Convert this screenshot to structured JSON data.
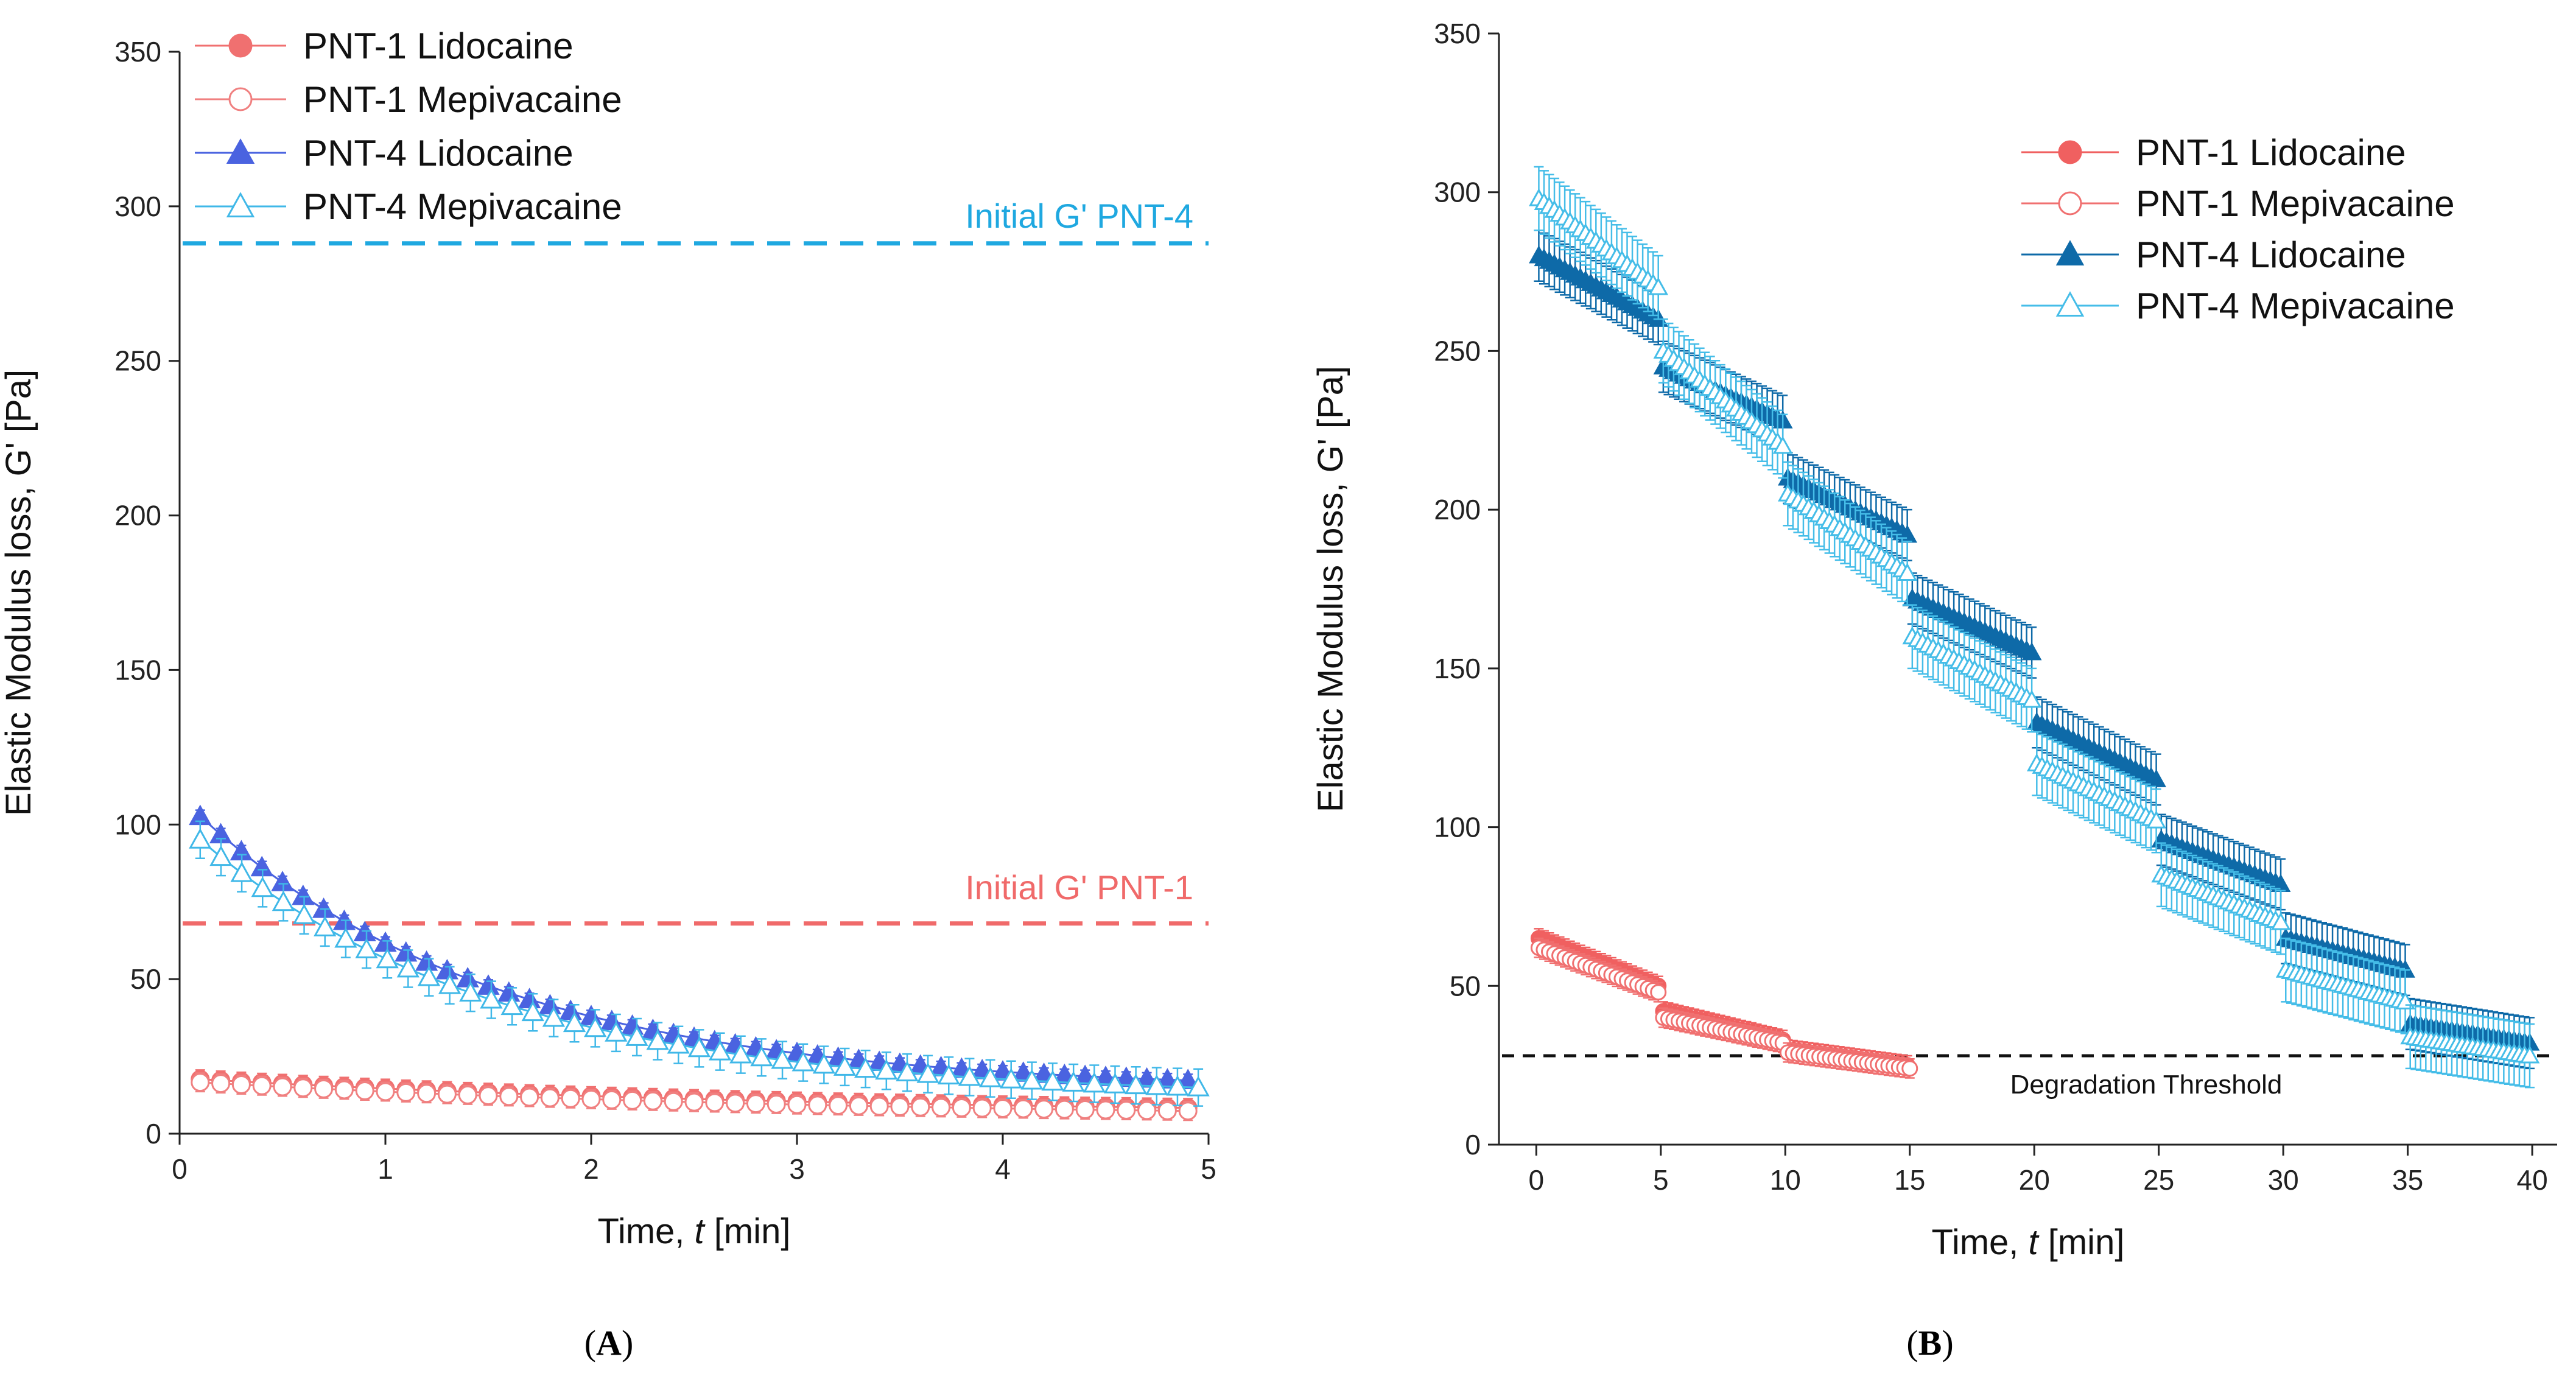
{
  "chart_data": [
    {
      "panel": "A",
      "type": "scatter",
      "xlabel_prefix": "Time, ",
      "xlabel_var": "t",
      "xlabel_suffix": " [min]",
      "ylabel": "Elastic Modulus loss, G' [Pa]",
      "xlim": [
        0,
        5
      ],
      "ylim": [
        0,
        350
      ],
      "xticks": [
        "0",
        "1",
        "2",
        "3",
        "4",
        "5"
      ],
      "yticks": [
        "0",
        "50",
        "100",
        "150",
        "200",
        "250",
        "300",
        "350"
      ],
      "legend_position": "top-left",
      "series": [
        {
          "name": "PNT-1 Lidocaine",
          "marker": "circle-filled",
          "color": "#f07070",
          "model": {
            "start": 0.1,
            "end": 4.9,
            "n": 49,
            "y0": 18,
            "yinf": 6,
            "tau": 3.0,
            "err": 3
          }
        },
        {
          "name": "PNT-1 Mepivacaine",
          "marker": "circle-open",
          "color": "#f08080",
          "model": {
            "start": 0.1,
            "end": 4.9,
            "n": 49,
            "y0": 17,
            "yinf": 5,
            "tau": 3.0,
            "err": 3
          }
        },
        {
          "name": "PNT-4 Lidocaine",
          "marker": "triangle-filled",
          "color": "#4a63e0",
          "model": {
            "start": 0.1,
            "end": 4.9,
            "n": 49,
            "y0": 109,
            "yinf": 14,
            "tau": 1.45,
            "err": 2
          }
        },
        {
          "name": "PNT-4 Mepivacaine",
          "marker": "triangle-open",
          "color": "#40b8e8",
          "model": {
            "start": 0.1,
            "end": 4.95,
            "n": 49,
            "y0": 101,
            "yinf": 12,
            "tau": 1.45,
            "err": 6
          }
        }
      ],
      "reference_lines": [
        {
          "label": "Initial G' PNT-4",
          "y": 288,
          "color": "#1fa8e0"
        },
        {
          "label": "Initial G' PNT-1",
          "y": 68,
          "color": "#f06a6a"
        }
      ]
    },
    {
      "panel": "B",
      "type": "scatter",
      "xlabel_prefix": "Time, ",
      "xlabel_var": "t",
      "xlabel_suffix": " [min]",
      "ylabel": "Elastic Modulus loss, G' [Pa]",
      "xlim": [
        -1.5,
        41
      ],
      "ylim": [
        0,
        350
      ],
      "xticks": [
        "0",
        "5",
        "10",
        "15",
        "20",
        "25",
        "30",
        "35",
        "40"
      ],
      "yticks": [
        "0",
        "50",
        "100",
        "150",
        "200",
        "250",
        "300",
        "350"
      ],
      "legend_position": "top-right",
      "series": [
        {
          "name": "PNT-1 Lidocaine",
          "marker": "circle-filled",
          "color": "#f06060",
          "segments": [
            [
              0.1,
              4.9,
              65,
              50
            ],
            [
              5.1,
              9.9,
              42,
              33
            ],
            [
              10.1,
              14.9,
              30,
              25
            ]
          ],
          "err": 3
        },
        {
          "name": "PNT-1 Mepivacaine",
          "marker": "circle-open",
          "color": "#f07070",
          "segments": [
            [
              0.1,
              4.9,
              62,
              48
            ],
            [
              5.1,
              9.9,
              40,
              32
            ],
            [
              10.1,
              15.0,
              29,
              24
            ]
          ],
          "err": 3
        },
        {
          "name": "PNT-4 Lidocaine",
          "marker": "triangle-filled",
          "color": "#0e6aa8",
          "segments": [
            [
              0.1,
              4.9,
              280,
              260
            ],
            [
              5.1,
              9.9,
              245,
              228
            ],
            [
              10.1,
              14.9,
              210,
              192
            ],
            [
              15.1,
              19.9,
              172,
              155
            ],
            [
              20.1,
              24.9,
              133,
              115
            ],
            [
              25.1,
              29.9,
              96,
              82
            ],
            [
              30.1,
              34.9,
              65,
              55
            ],
            [
              35.1,
              39.9,
              38,
              32
            ]
          ],
          "err": 8
        },
        {
          "name": "PNT-4 Mepivacaine",
          "marker": "triangle-open",
          "color": "#45bde8",
          "segments": [
            [
              0.1,
              4.9,
              298,
              270
            ],
            [
              5.1,
              9.9,
              250,
              220
            ],
            [
              10.1,
              14.9,
              205,
              180
            ],
            [
              15.1,
              19.9,
              160,
              140
            ],
            [
              20.1,
              24.9,
              120,
              102
            ],
            [
              25.1,
              29.9,
              85,
              70
            ],
            [
              30.1,
              34.9,
              55,
              45
            ],
            [
              35.1,
              39.9,
              34,
              28
            ]
          ],
          "err": 10
        }
      ],
      "reference_lines": [
        {
          "label": "Degradation Threshold",
          "y": 28,
          "color": "#111111"
        }
      ]
    }
  ],
  "panels": {
    "a": {
      "open": "(",
      "letter": "A",
      "close": ")"
    },
    "b": {
      "open": "(",
      "letter": "B",
      "close": ")"
    }
  }
}
